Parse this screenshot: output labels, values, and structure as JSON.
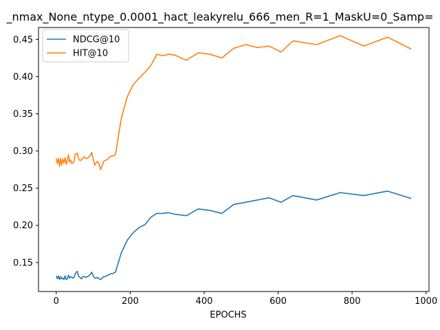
{
  "chart_data": {
    "type": "line",
    "title": "_nmax_None_ntype_0.0001_hact_leakyrelu_666_men_R=1_MaskU=0_Samp=",
    "xlabel": "EPOCHS",
    "ylabel": "",
    "xlim": [
      -48,
      1008
    ],
    "ylim": [
      0.111,
      0.466
    ],
    "xticks": [
      0,
      200,
      400,
      600,
      800,
      1000
    ],
    "yticks": [
      0.15,
      0.2,
      0.25,
      0.3,
      0.35,
      0.4,
      0.45
    ],
    "ytick_labels": [
      "0.15",
      "0.20",
      "0.25",
      "0.30",
      "0.35",
      "0.40",
      "0.45"
    ],
    "grid": false,
    "legend_position": "top-left",
    "series": [
      {
        "name": "NDCG@10",
        "color": "#1f77b4",
        "x": [
          0,
          3,
          6,
          9,
          12,
          15,
          18,
          21,
          24,
          27,
          30,
          33,
          36,
          39,
          42,
          45,
          48,
          51,
          54,
          57,
          60,
          64,
          68,
          72,
          76,
          80,
          84,
          88,
          92,
          96,
          100,
          104,
          108,
          112,
          116,
          120,
          124,
          128,
          132,
          136,
          140,
          144,
          148,
          152,
          160,
          176,
          192,
          208,
          224,
          240,
          256,
          272,
          288,
          304,
          320,
          352,
          384,
          416,
          448,
          480,
          512,
          544,
          576,
          608,
          640,
          704,
          768,
          832,
          896,
          960
        ],
        "y": [
          0.132,
          0.128,
          0.132,
          0.127,
          0.131,
          0.128,
          0.129,
          0.127,
          0.132,
          0.127,
          0.128,
          0.133,
          0.129,
          0.131,
          0.13,
          0.129,
          0.13,
          0.134,
          0.137,
          0.138,
          0.132,
          0.13,
          0.128,
          0.131,
          0.131,
          0.13,
          0.131,
          0.132,
          0.134,
          0.137,
          0.132,
          0.129,
          0.129,
          0.13,
          0.128,
          0.127,
          0.129,
          0.131,
          0.131,
          0.132,
          0.133,
          0.134,
          0.135,
          0.135,
          0.137,
          0.163,
          0.18,
          0.19,
          0.197,
          0.201,
          0.211,
          0.216,
          0.216,
          0.217,
          0.215,
          0.213,
          0.222,
          0.22,
          0.216,
          0.228,
          0.231,
          0.234,
          0.237,
          0.231,
          0.24,
          0.234,
          0.244,
          0.24,
          0.246,
          0.236
        ]
      },
      {
        "name": "HIT@10",
        "color": "#ff7f0e",
        "x": [
          0,
          3,
          6,
          9,
          12,
          15,
          18,
          21,
          24,
          27,
          30,
          33,
          36,
          39,
          42,
          45,
          48,
          51,
          54,
          57,
          60,
          64,
          68,
          72,
          76,
          80,
          84,
          88,
          92,
          96,
          100,
          104,
          108,
          112,
          116,
          120,
          124,
          128,
          132,
          136,
          140,
          144,
          148,
          152,
          160,
          176,
          192,
          208,
          224,
          240,
          256,
          272,
          288,
          304,
          320,
          352,
          384,
          416,
          448,
          480,
          512,
          544,
          576,
          608,
          640,
          704,
          768,
          832,
          896,
          960
        ],
        "y": [
          0.29,
          0.283,
          0.29,
          0.279,
          0.29,
          0.281,
          0.289,
          0.284,
          0.291,
          0.282,
          0.287,
          0.295,
          0.285,
          0.288,
          0.283,
          0.284,
          0.286,
          0.295,
          0.296,
          0.297,
          0.29,
          0.287,
          0.288,
          0.291,
          0.292,
          0.29,
          0.29,
          0.292,
          0.294,
          0.298,
          0.289,
          0.281,
          0.284,
          0.286,
          0.282,
          0.275,
          0.28,
          0.286,
          0.287,
          0.288,
          0.289,
          0.292,
          0.293,
          0.293,
          0.295,
          0.344,
          0.373,
          0.389,
          0.398,
          0.406,
          0.415,
          0.43,
          0.428,
          0.43,
          0.429,
          0.422,
          0.432,
          0.43,
          0.425,
          0.438,
          0.443,
          0.439,
          0.441,
          0.433,
          0.448,
          0.443,
          0.455,
          0.441,
          0.453,
          0.437
        ]
      }
    ]
  }
}
